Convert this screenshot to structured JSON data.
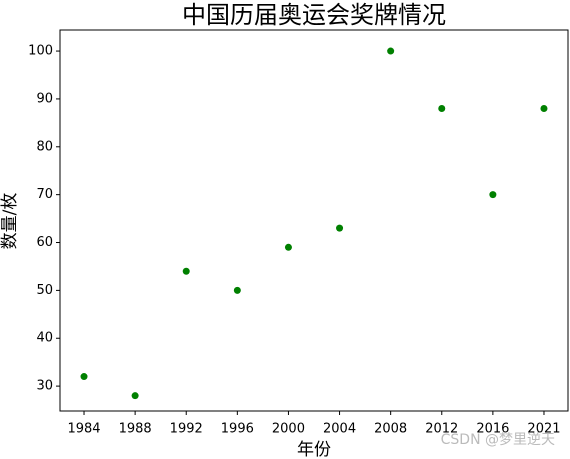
{
  "chart_data": {
    "type": "scatter",
    "title": "中国历届奥运会奖牌情况",
    "x_label": "年份",
    "y_label": "数量/枚",
    "categories": [
      "1984",
      "1988",
      "1992",
      "1996",
      "2000",
      "2004",
      "2008",
      "2012",
      "2016",
      "2021"
    ],
    "values": [
      32,
      28,
      54,
      50,
      59,
      63,
      100,
      88,
      70,
      88
    ],
    "color": "#008000",
    "ylim": [
      24.8,
      104.4
    ],
    "yticks": [
      30,
      40,
      50,
      60,
      70,
      80,
      90,
      100
    ]
  },
  "watermark": "CSDN @梦里逆天"
}
